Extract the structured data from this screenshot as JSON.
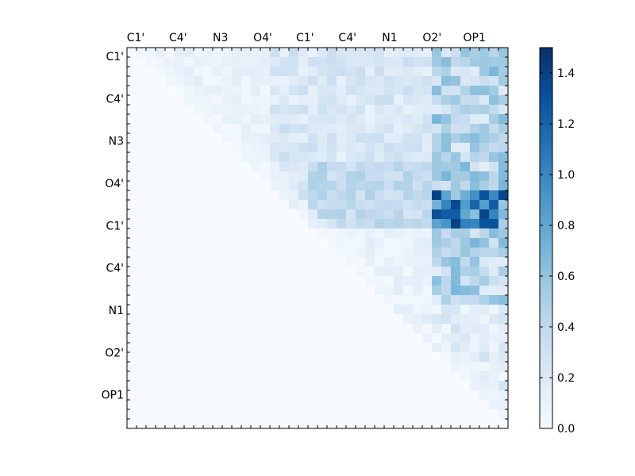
{
  "chart_data": {
    "type": "heatmap",
    "title": "",
    "xlabel": "",
    "ylabel": "",
    "x_tick_labels": [
      "C1'",
      "C4'",
      "N3",
      "O4'",
      "C1'",
      "C4'",
      "N1",
      "O2'",
      "OP1"
    ],
    "y_tick_labels": [
      "C1'",
      "C4'",
      "N3",
      "O4'",
      "C1'",
      "C4'",
      "N1",
      "O2'",
      "OP1"
    ],
    "grid": false,
    "colormap": "Blues",
    "colorbar": {
      "range": [
        0.0,
        1.5
      ],
      "ticks": [
        "0.0",
        "0.2",
        "0.4",
        "0.6",
        "0.8",
        "1.0",
        "1.2",
        "1.4"
      ],
      "position": "right"
    },
    "n_rows": 40,
    "n_cols": 40,
    "values_note": "upper-triangular matrix; zero elsewhere",
    "values": []
  },
  "colors": {
    "low": "#f7fbff",
    "high": "#08306b",
    "frame": "#000000"
  }
}
